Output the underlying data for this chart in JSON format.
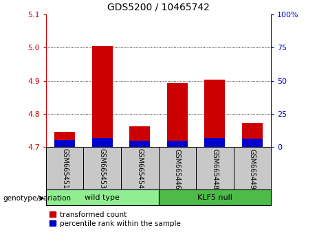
{
  "title": "GDS5200 / 10465742",
  "samples": [
    "GSM665451",
    "GSM665453",
    "GSM665454",
    "GSM665446",
    "GSM665448",
    "GSM665449"
  ],
  "red_values": [
    4.745,
    5.005,
    4.762,
    4.893,
    4.903,
    4.772
  ],
  "blue_values": [
    4.722,
    4.728,
    4.72,
    4.72,
    4.728,
    4.726
  ],
  "base_value": 4.7,
  "ylim": [
    4.7,
    5.1
  ],
  "yticks_left": [
    4.7,
    4.8,
    4.9,
    5.0,
    5.1
  ],
  "yticks_right_labels": [
    "0",
    "25",
    "50",
    "75",
    "100%"
  ],
  "bar_width": 0.55,
  "red_color": "#CC0000",
  "blue_color": "#0000CC",
  "bg_label": "#C8C8C8",
  "wt_color": "#90EE90",
  "klf_color": "#4CBB47",
  "legend_red_label": "transformed count",
  "legend_blue_label": "percentile rank within the sample",
  "genotype_label": "genotype/variation"
}
